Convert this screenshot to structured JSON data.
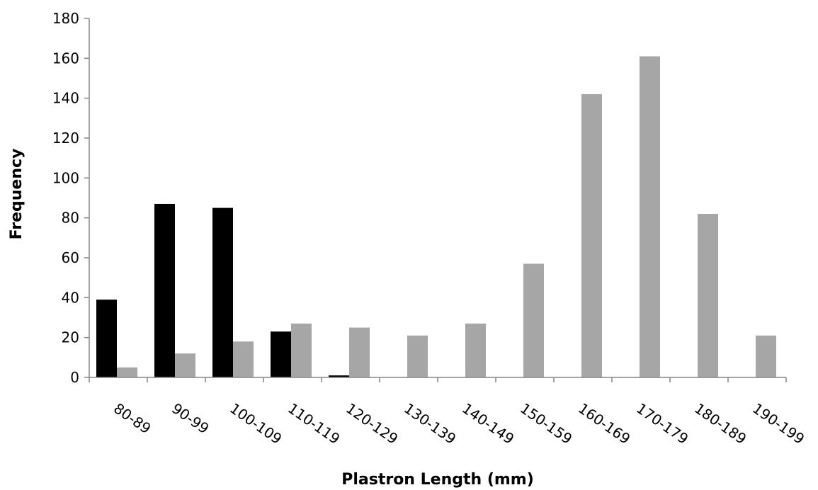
{
  "chart_data": {
    "type": "bar",
    "title": "",
    "xlabel": "Plastron Length (mm)",
    "ylabel": "Frequency",
    "ylim": [
      0,
      180
    ],
    "yticks": [
      0,
      20,
      40,
      60,
      80,
      100,
      120,
      140,
      160,
      180
    ],
    "grid": false,
    "legend": "none",
    "categories": [
      "80-89",
      "90-99",
      "100-109",
      "110-119",
      "120-129",
      "130-139",
      "140-149",
      "150-159",
      "160-169",
      "170-179",
      "180-189",
      "190-199"
    ],
    "series": [
      {
        "color": "#000000",
        "values": [
          39,
          87,
          85,
          23,
          1,
          0,
          0,
          0,
          0,
          0,
          0,
          0
        ]
      },
      {
        "color": "#a6a6a6",
        "values": [
          5,
          12,
          18,
          27,
          25,
          21,
          27,
          57,
          142,
          161,
          82,
          21
        ]
      }
    ]
  }
}
